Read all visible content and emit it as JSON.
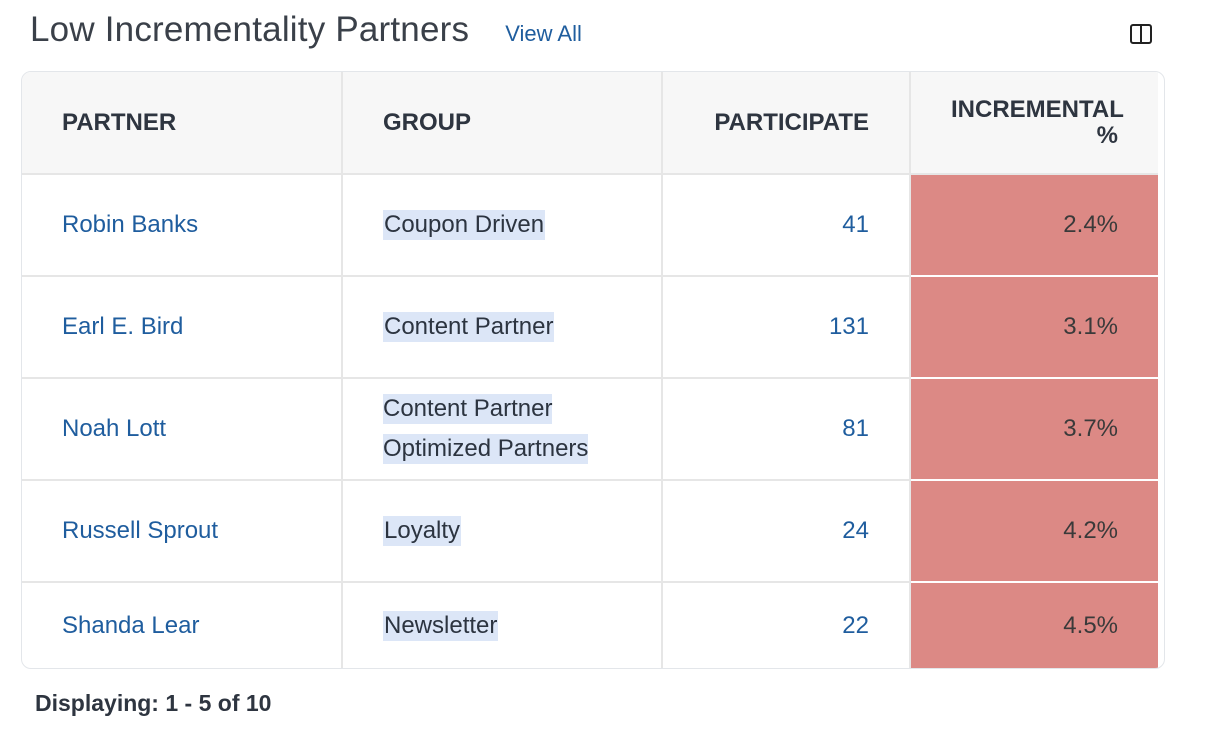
{
  "header": {
    "title": "Low Incrementality Partners",
    "view_all_label": "View All",
    "columns_icon": "columns-icon"
  },
  "table": {
    "columns": [
      "PARTNER",
      "GROUP",
      "PARTICIPATE",
      "INCREMENTAL %"
    ],
    "rows": [
      {
        "partner": "Robin Banks",
        "groups": [
          "Coupon Driven"
        ],
        "participate": "41",
        "incremental": "2.4%"
      },
      {
        "partner": "Earl E. Bird",
        "groups": [
          "Content Partner"
        ],
        "participate": "131",
        "incremental": "3.1%"
      },
      {
        "partner": "Noah Lott",
        "groups": [
          "Content Partner",
          "Optimized Partners"
        ],
        "participate": "81",
        "incremental": "3.7%"
      },
      {
        "partner": "Russell Sprout",
        "groups": [
          "Loyalty"
        ],
        "participate": "24",
        "incremental": "4.2%"
      },
      {
        "partner": "Shanda Lear",
        "groups": [
          "Newsletter"
        ],
        "participate": "22",
        "incremental": "4.5%"
      }
    ],
    "highlight_color": "#dc8985",
    "group_tag_color": "#dce6f7"
  },
  "footer": {
    "displaying": "Displaying: 1 - 5 of 10"
  }
}
